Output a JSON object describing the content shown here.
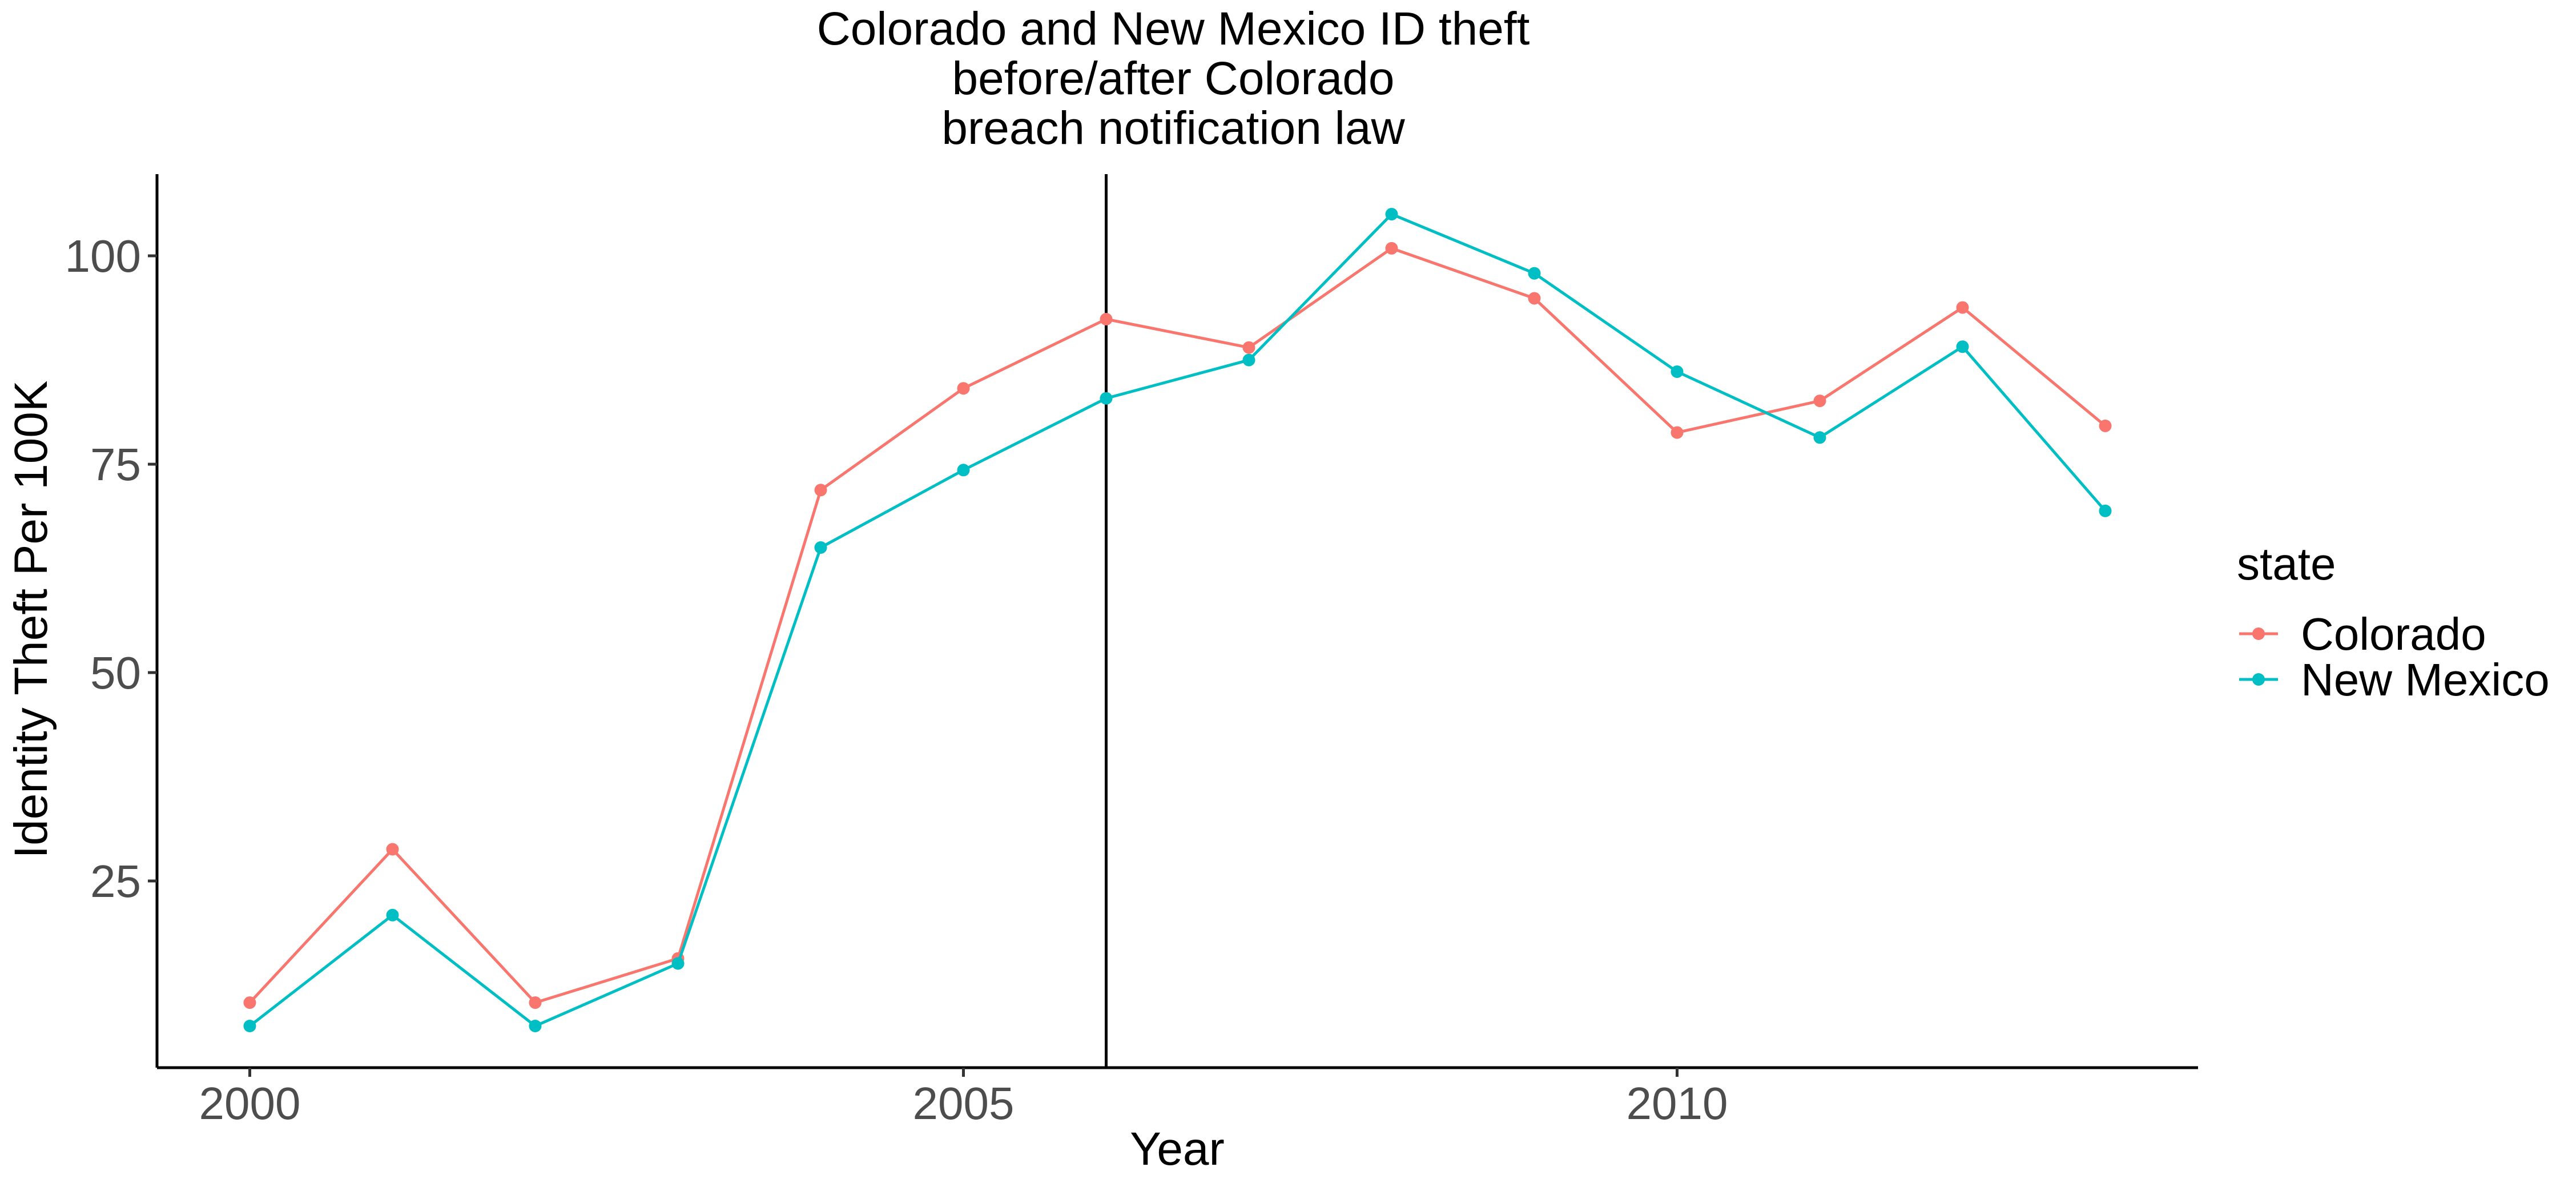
{
  "chart_data": {
    "type": "line",
    "title_lines": [
      "Colorado and New Mexico ID theft",
      "before/after Colorado",
      "breach notification law"
    ],
    "xlabel": "Year",
    "ylabel": "Identity Theft Per 100K",
    "x": [
      2000,
      2001,
      2002,
      2003,
      2004,
      2005,
      2006,
      2007,
      2008,
      2009,
      2010,
      2011,
      2012,
      2013
    ],
    "xlim": [
      1999.35,
      2013.65
    ],
    "ylim": [
      2.6,
      109.8
    ],
    "x_ticks": [
      2000,
      2005,
      2010
    ],
    "y_ticks": [
      25,
      50,
      75,
      100
    ],
    "vline_x": 2006,
    "grid": false,
    "legend_title": "state",
    "legend_position": "right",
    "series": [
      {
        "name": "Colorado",
        "color": "#F8766D",
        "values": [
          10.4,
          28.8,
          10.4,
          15.7,
          71.9,
          84.1,
          92.4,
          89.0,
          100.9,
          94.9,
          78.8,
          82.6,
          93.8,
          79.6
        ]
      },
      {
        "name": "New Mexico",
        "color": "#00BFC4",
        "values": [
          7.6,
          20.9,
          7.6,
          15.1,
          65.0,
          74.3,
          82.9,
          87.5,
          105.0,
          97.9,
          86.1,
          78.2,
          89.1,
          69.4
        ]
      }
    ]
  }
}
